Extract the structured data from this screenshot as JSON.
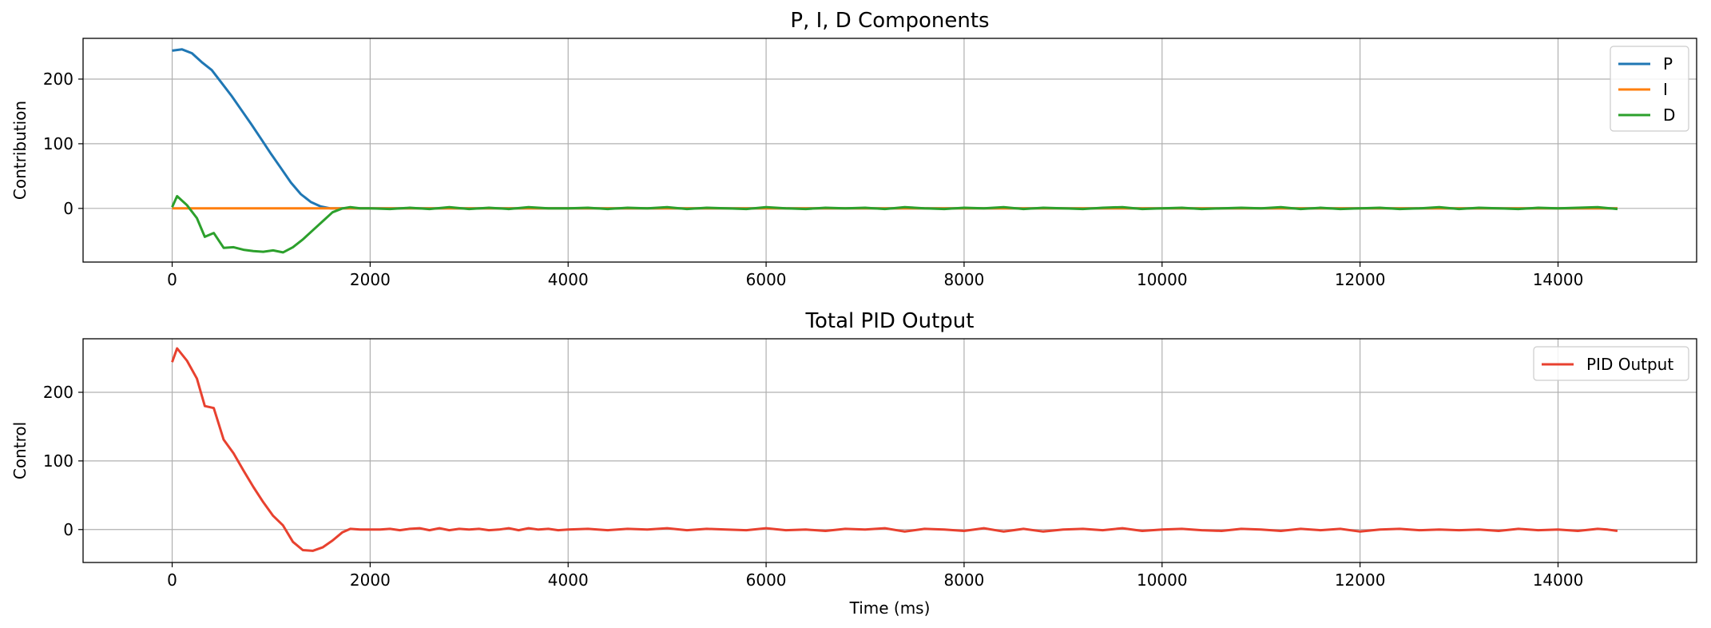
{
  "chart_data": [
    {
      "type": "line",
      "title": "P, I, D Components",
      "xlabel": "",
      "ylabel": "Contribution",
      "xlim": [
        -900,
        15400
      ],
      "ylim": [
        -83,
        263
      ],
      "xticks": [
        0,
        2000,
        4000,
        6000,
        8000,
        10000,
        12000,
        14000
      ],
      "yticks": [
        0,
        100,
        200
      ],
      "grid": true,
      "legend": "top-right",
      "series": [
        {
          "name": "P",
          "color": "#1f77b4",
          "x": [
            0,
            100,
            200,
            300,
            400,
            500,
            600,
            700,
            800,
            900,
            1000,
            1100,
            1200,
            1300,
            1400,
            1500,
            1600,
            1700,
            1800,
            14600
          ],
          "y": [
            244,
            246,
            240,
            226,
            214,
            194,
            174,
            152,
            130,
            107,
            84,
            62,
            40,
            22,
            10,
            3,
            0,
            0,
            0,
            0
          ]
        },
        {
          "name": "I",
          "color": "#ff7f0e",
          "x": [
            0,
            1800,
            14600
          ],
          "y": [
            0,
            0,
            0
          ]
        },
        {
          "name": "D",
          "color": "#2ca02c",
          "x": [
            0,
            50,
            150,
            250,
            330,
            420,
            520,
            620,
            720,
            820,
            920,
            1020,
            1120,
            1220,
            1320,
            1420,
            1520,
            1620,
            1720,
            1800,
            1900,
            2000,
            2200,
            2400,
            2600,
            2800,
            3000,
            3200,
            3400,
            3600,
            3800,
            4000,
            4200,
            4400,
            4600,
            4800,
            5000,
            5200,
            5400,
            5600,
            5800,
            6000,
            6200,
            6400,
            6600,
            6800,
            7000,
            7200,
            7400,
            7600,
            7800,
            8000,
            8200,
            8400,
            8600,
            8800,
            9000,
            9200,
            9400,
            9600,
            9800,
            10000,
            10200,
            10400,
            10600,
            10800,
            11000,
            11200,
            11400,
            11600,
            11800,
            12000,
            12200,
            12400,
            12600,
            12800,
            13000,
            13200,
            13400,
            13600,
            13800,
            14000,
            14200,
            14400,
            14600
          ],
          "y": [
            2,
            19,
            5,
            -15,
            -44,
            -38,
            -61,
            -60,
            -64,
            -66,
            -67,
            -65,
            -68,
            -60,
            -48,
            -34,
            -20,
            -6,
            0,
            2,
            0,
            0,
            -1,
            1,
            -1,
            2,
            -1,
            1,
            -1,
            2,
            0,
            0,
            1,
            -1,
            1,
            0,
            2,
            -1,
            1,
            0,
            -1,
            2,
            0,
            -1,
            1,
            0,
            1,
            -1,
            2,
            0,
            -1,
            1,
            0,
            2,
            -1,
            1,
            0,
            -1,
            1,
            2,
            -1,
            0,
            1,
            -1,
            0,
            1,
            0,
            2,
            -1,
            1,
            -1,
            0,
            1,
            -1,
            0,
            2,
            -1,
            1,
            0,
            -1,
            1,
            0,
            1,
            2,
            -1
          ]
        }
      ]
    },
    {
      "type": "line",
      "title": "Total PID Output",
      "xlabel": "Time (ms)",
      "ylabel": "Control",
      "xlim": [
        -900,
        15400
      ],
      "ylim": [
        -48,
        278
      ],
      "xticks": [
        0,
        2000,
        4000,
        6000,
        8000,
        10000,
        12000,
        14000
      ],
      "yticks": [
        0,
        100,
        200
      ],
      "grid": true,
      "legend": "top-right",
      "series": [
        {
          "name": "PID Output",
          "color": "#e8412f",
          "x": [
            0,
            50,
            150,
            250,
            330,
            420,
            520,
            620,
            720,
            820,
            920,
            1020,
            1120,
            1220,
            1320,
            1420,
            1520,
            1620,
            1720,
            1800,
            1900,
            2000,
            2100,
            2200,
            2300,
            2400,
            2500,
            2600,
            2700,
            2800,
            2900,
            3000,
            3100,
            3200,
            3300,
            3400,
            3500,
            3600,
            3700,
            3800,
            3900,
            4000,
            4200,
            4400,
            4600,
            4800,
            5000,
            5200,
            5400,
            5600,
            5800,
            6000,
            6200,
            6400,
            6600,
            6800,
            7000,
            7200,
            7400,
            7600,
            7800,
            8000,
            8200,
            8400,
            8600,
            8800,
            9000,
            9200,
            9400,
            9600,
            9800,
            10000,
            10200,
            10400,
            10600,
            10800,
            11000,
            11200,
            11400,
            11600,
            11800,
            12000,
            12200,
            12400,
            12600,
            12800,
            13000,
            13200,
            13400,
            13600,
            13800,
            14000,
            14200,
            14400,
            14500,
            14600
          ],
          "y": [
            244,
            264,
            246,
            220,
            180,
            177,
            131,
            111,
            86,
            62,
            40,
            20,
            6,
            -18,
            -30,
            -31,
            -26,
            -16,
            -4,
            1,
            0,
            0,
            0,
            1,
            -1,
            1,
            2,
            -1,
            2,
            -1,
            1,
            0,
            1,
            -1,
            0,
            2,
            -1,
            2,
            0,
            1,
            -1,
            0,
            1,
            -1,
            1,
            0,
            2,
            -1,
            1,
            0,
            -1,
            2,
            -1,
            0,
            -2,
            1,
            0,
            2,
            -3,
            1,
            0,
            -2,
            2,
            -3,
            1,
            -3,
            0,
            1,
            -1,
            2,
            -2,
            0,
            1,
            -1,
            -2,
            1,
            0,
            -2,
            1,
            -1,
            1,
            -3,
            0,
            1,
            -1,
            0,
            -1,
            0,
            -2,
            1,
            -1,
            0,
            -2,
            1,
            0,
            -2
          ]
        }
      ]
    }
  ]
}
